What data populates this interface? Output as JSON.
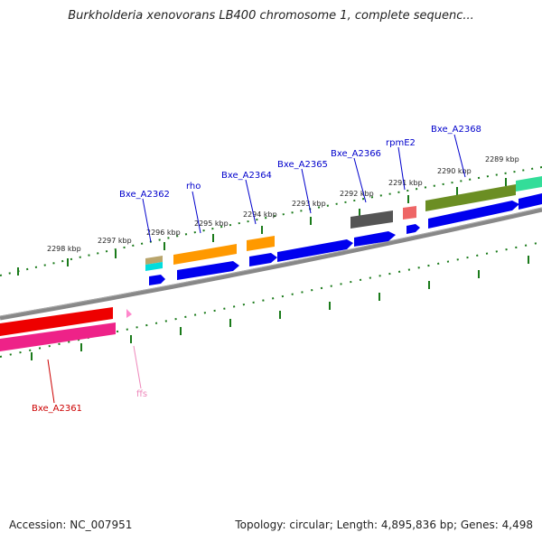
{
  "title": "Burkholderia xenovorans LB400 chromosome 1, complete sequenc...",
  "footer": {
    "accession": "Accession: NC_007951",
    "summary": "Topology: circular; Length: 4,895,836 bp; Genes: 4,498"
  },
  "colors": {
    "backbone": "#888888",
    "tick": "#1a7a1a",
    "gene_label": "#0000cc",
    "red_label": "#cc0000",
    "pink_label": "#ee88bb",
    "cds": "#0000ee"
  },
  "kbp_ticks": [
    "2298 kbp",
    "2297 kbp",
    "2296 kbp",
    "2295 kbp",
    "2294 kbp",
    "2293 kbp",
    "2292 kbp",
    "2291 kbp",
    "2290 kbp",
    "2289 kbp"
  ],
  "gene_labels": {
    "bxe_a2362": "Bxe_A2362",
    "rho": "rho",
    "bxe_a2364": "Bxe_A2364",
    "bxe_a2365": "Bxe_A2365",
    "bxe_a2366": "Bxe_A2366",
    "rpme2": "rpmE2",
    "bxe_a2368": "Bxe_A2368",
    "bxe_a2361": "Bxe_A2361",
    "ffs": "ffs"
  }
}
